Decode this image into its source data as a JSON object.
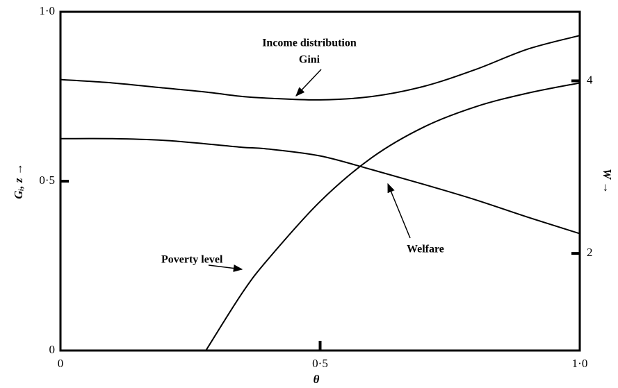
{
  "chart_data": {
    "type": "line",
    "xlabel": "θ",
    "ylabel": "Gᵢ, z →",
    "y2label": "W →",
    "x": [
      0,
      0.1,
      0.2,
      0.28,
      0.35,
      0.4,
      0.5,
      0.6,
      0.7,
      0.8,
      0.9,
      1.0
    ],
    "series": [
      {
        "name": "Income distribution Gini",
        "color": "#000000",
        "values": [
          0.8,
          0.79,
          0.775,
          0.763,
          0.75,
          0.745,
          0.74,
          0.75,
          0.78,
          0.83,
          0.89,
          0.93
        ]
      },
      {
        "name": "Poverty level",
        "color": "#000000",
        "values": [
          null,
          null,
          null,
          0,
          0.17,
          0.27,
          0.44,
          0.57,
          0.66,
          0.72,
          0.76,
          0.79
        ]
      },
      {
        "name": "Welfare",
        "color": "#000000",
        "axis": "y2",
        "values": [
          3.33,
          3.33,
          3.31,
          3.27,
          3.23,
          3.21,
          3.13,
          2.97,
          2.8,
          2.62,
          2.42,
          2.23
        ]
      }
    ],
    "annotations": [
      "Income distribution",
      "Gini",
      "Poverty level",
      "Welfare"
    ],
    "xlim": [
      0,
      1
    ],
    "xticks": [
      0,
      {
        "value": 0.5,
        "label": "0·5"
      },
      {
        "value": 1,
        "label": "1·0"
      }
    ],
    "ylim": [
      0,
      1
    ],
    "yticks": [
      0,
      {
        "value": 0.5,
        "label": "0·5"
      },
      {
        "value": 1,
        "label": "1·0"
      }
    ],
    "y2lim": [
      0.875,
      4.8
    ],
    "y2ticks": [
      2,
      4
    ]
  }
}
